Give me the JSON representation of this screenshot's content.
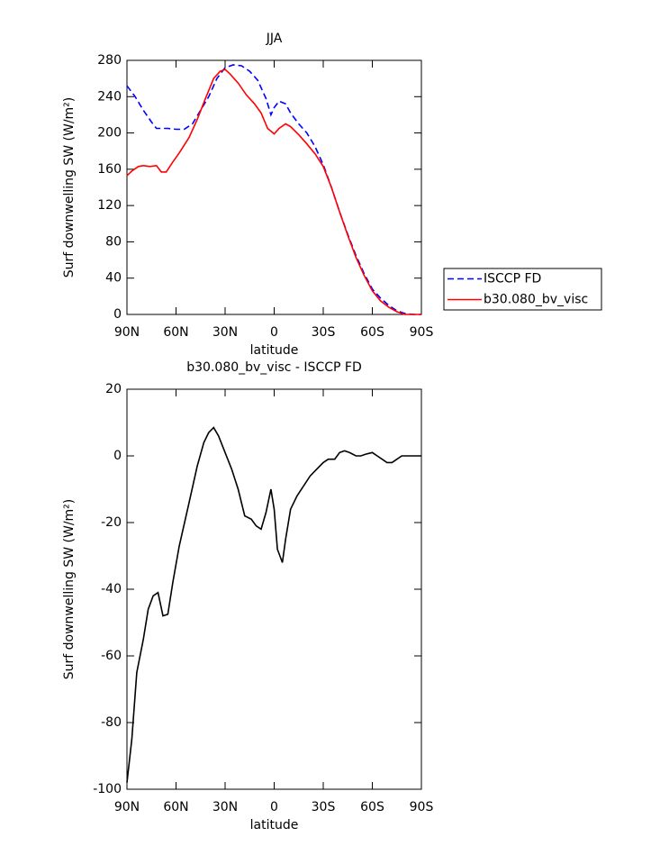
{
  "chart_data": [
    {
      "type": "line",
      "title": "JJA",
      "xlabel": "latitude",
      "ylabel": "Surf downwelling SW (W/m²)",
      "xlim": [
        90,
        -90
      ],
      "xticks": [
        {
          "value": 90,
          "label": "90N"
        },
        {
          "value": 60,
          "label": "60N"
        },
        {
          "value": 30,
          "label": "30N"
        },
        0,
        {
          "value": -30,
          "label": "30S"
        },
        {
          "value": -60,
          "label": "60S"
        },
        {
          "value": -90,
          "label": "90S"
        }
      ],
      "ylim": [
        0,
        280
      ],
      "yticks": [
        0,
        40,
        80,
        120,
        160,
        200,
        240,
        280
      ],
      "legend": "right",
      "series": [
        {
          "name": "ISCCP FD",
          "color": "#0000ff",
          "dash": true,
          "x": [
            90,
            85,
            80,
            75,
            72,
            65,
            60,
            55,
            50,
            45,
            40,
            35,
            30,
            25,
            20,
            15,
            10,
            5,
            2,
            0,
            -3,
            -7,
            -10,
            -15,
            -20,
            -25,
            -30,
            -35,
            -40,
            -45,
            -50,
            -55,
            -60,
            -65,
            -70,
            -75,
            -80,
            -85,
            -90
          ],
          "values": [
            252,
            240,
            225,
            212,
            205,
            205,
            204,
            204,
            210,
            225,
            240,
            260,
            272,
            275,
            274,
            268,
            258,
            238,
            220,
            228,
            235,
            232,
            222,
            210,
            200,
            185,
            165,
            140,
            113,
            88,
            65,
            45,
            28,
            18,
            10,
            4,
            1,
            0,
            0
          ]
        },
        {
          "name": "b30.080_bv_visc",
          "color": "#ff0000",
          "dash": false,
          "x": [
            90,
            87,
            83,
            80,
            76,
            72,
            69,
            66,
            62,
            58,
            52,
            47,
            42,
            37,
            33,
            30,
            27,
            22,
            17,
            12,
            8,
            4,
            0,
            -3,
            -7,
            -10,
            -15,
            -20,
            -25,
            -30,
            -35,
            -40,
            -45,
            -50,
            -55,
            -60,
            -65,
            -70,
            -75,
            -80,
            -85,
            -90
          ],
          "values": [
            153,
            158,
            163,
            164,
            163,
            164,
            157,
            157,
            168,
            178,
            195,
            215,
            238,
            260,
            268,
            270,
            265,
            255,
            242,
            232,
            222,
            205,
            199,
            205,
            210,
            207,
            198,
            188,
            177,
            163,
            140,
            113,
            87,
            63,
            43,
            26,
            15,
            8,
            3,
            0,
            0,
            0
          ]
        }
      ]
    },
    {
      "type": "line",
      "title": "b30.080_bv_visc - ISCCP FD",
      "xlabel": "latitude",
      "ylabel": "Surf downwelling SW (W/m²)",
      "xlim": [
        90,
        -90
      ],
      "xticks": [
        {
          "value": 90,
          "label": "90N"
        },
        {
          "value": 60,
          "label": "60N"
        },
        {
          "value": 30,
          "label": "30N"
        },
        0,
        {
          "value": -30,
          "label": "30S"
        },
        {
          "value": -60,
          "label": "60S"
        },
        {
          "value": -90,
          "label": "90S"
        }
      ],
      "ylim": [
        -100,
        20
      ],
      "yticks": [
        -100,
        -80,
        -60,
        -40,
        -20,
        0,
        20
      ],
      "series": [
        {
          "color": "#000000",
          "dash": false,
          "x": [
            90,
            87,
            84,
            80,
            77,
            74,
            71,
            68,
            65,
            62,
            58,
            52,
            47,
            43,
            40,
            37,
            34,
            30,
            26,
            22,
            18,
            14,
            11,
            8,
            5,
            2,
            0,
            -2,
            -5,
            -7,
            -10,
            -14,
            -18,
            -22,
            -26,
            -30,
            -33,
            -37,
            -40,
            -43,
            -46,
            -50,
            -53,
            -56,
            -60,
            -63,
            -66,
            -69,
            -72,
            -75,
            -78,
            -82,
            -86,
            -90
          ],
          "values": [
            -98,
            -85,
            -65,
            -55,
            -46,
            -42,
            -41,
            -48,
            -47.5,
            -38,
            -27,
            -14,
            -3,
            4,
            7,
            8.5,
            6,
            1,
            -4,
            -10,
            -18,
            -19,
            -21,
            -22,
            -17,
            -10,
            -16,
            -28,
            -32,
            -25,
            -16,
            -12,
            -9,
            -6,
            -4,
            -2,
            -1,
            -1,
            1,
            1.5,
            1,
            0,
            0,
            0.5,
            1,
            0,
            -1,
            -2,
            -2,
            -1,
            0,
            0,
            0,
            0
          ]
        }
      ]
    }
  ]
}
